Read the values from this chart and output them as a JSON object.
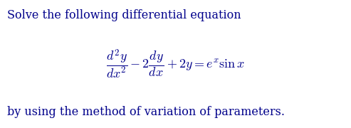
{
  "line1": "Solve the following differential equation",
  "line2": "$\\dfrac{d^2y}{dx^2} - 2\\dfrac{dy}{dx} + 2y = e^x \\sin x$",
  "line3": "by using the method of variation of parameters.",
  "text_color": "#00008B",
  "background_color": "#ffffff",
  "line1_fontsize": 11.5,
  "line2_fontsize": 13,
  "line3_fontsize": 11.5,
  "fig_width": 4.93,
  "fig_height": 1.8,
  "dpi": 100
}
